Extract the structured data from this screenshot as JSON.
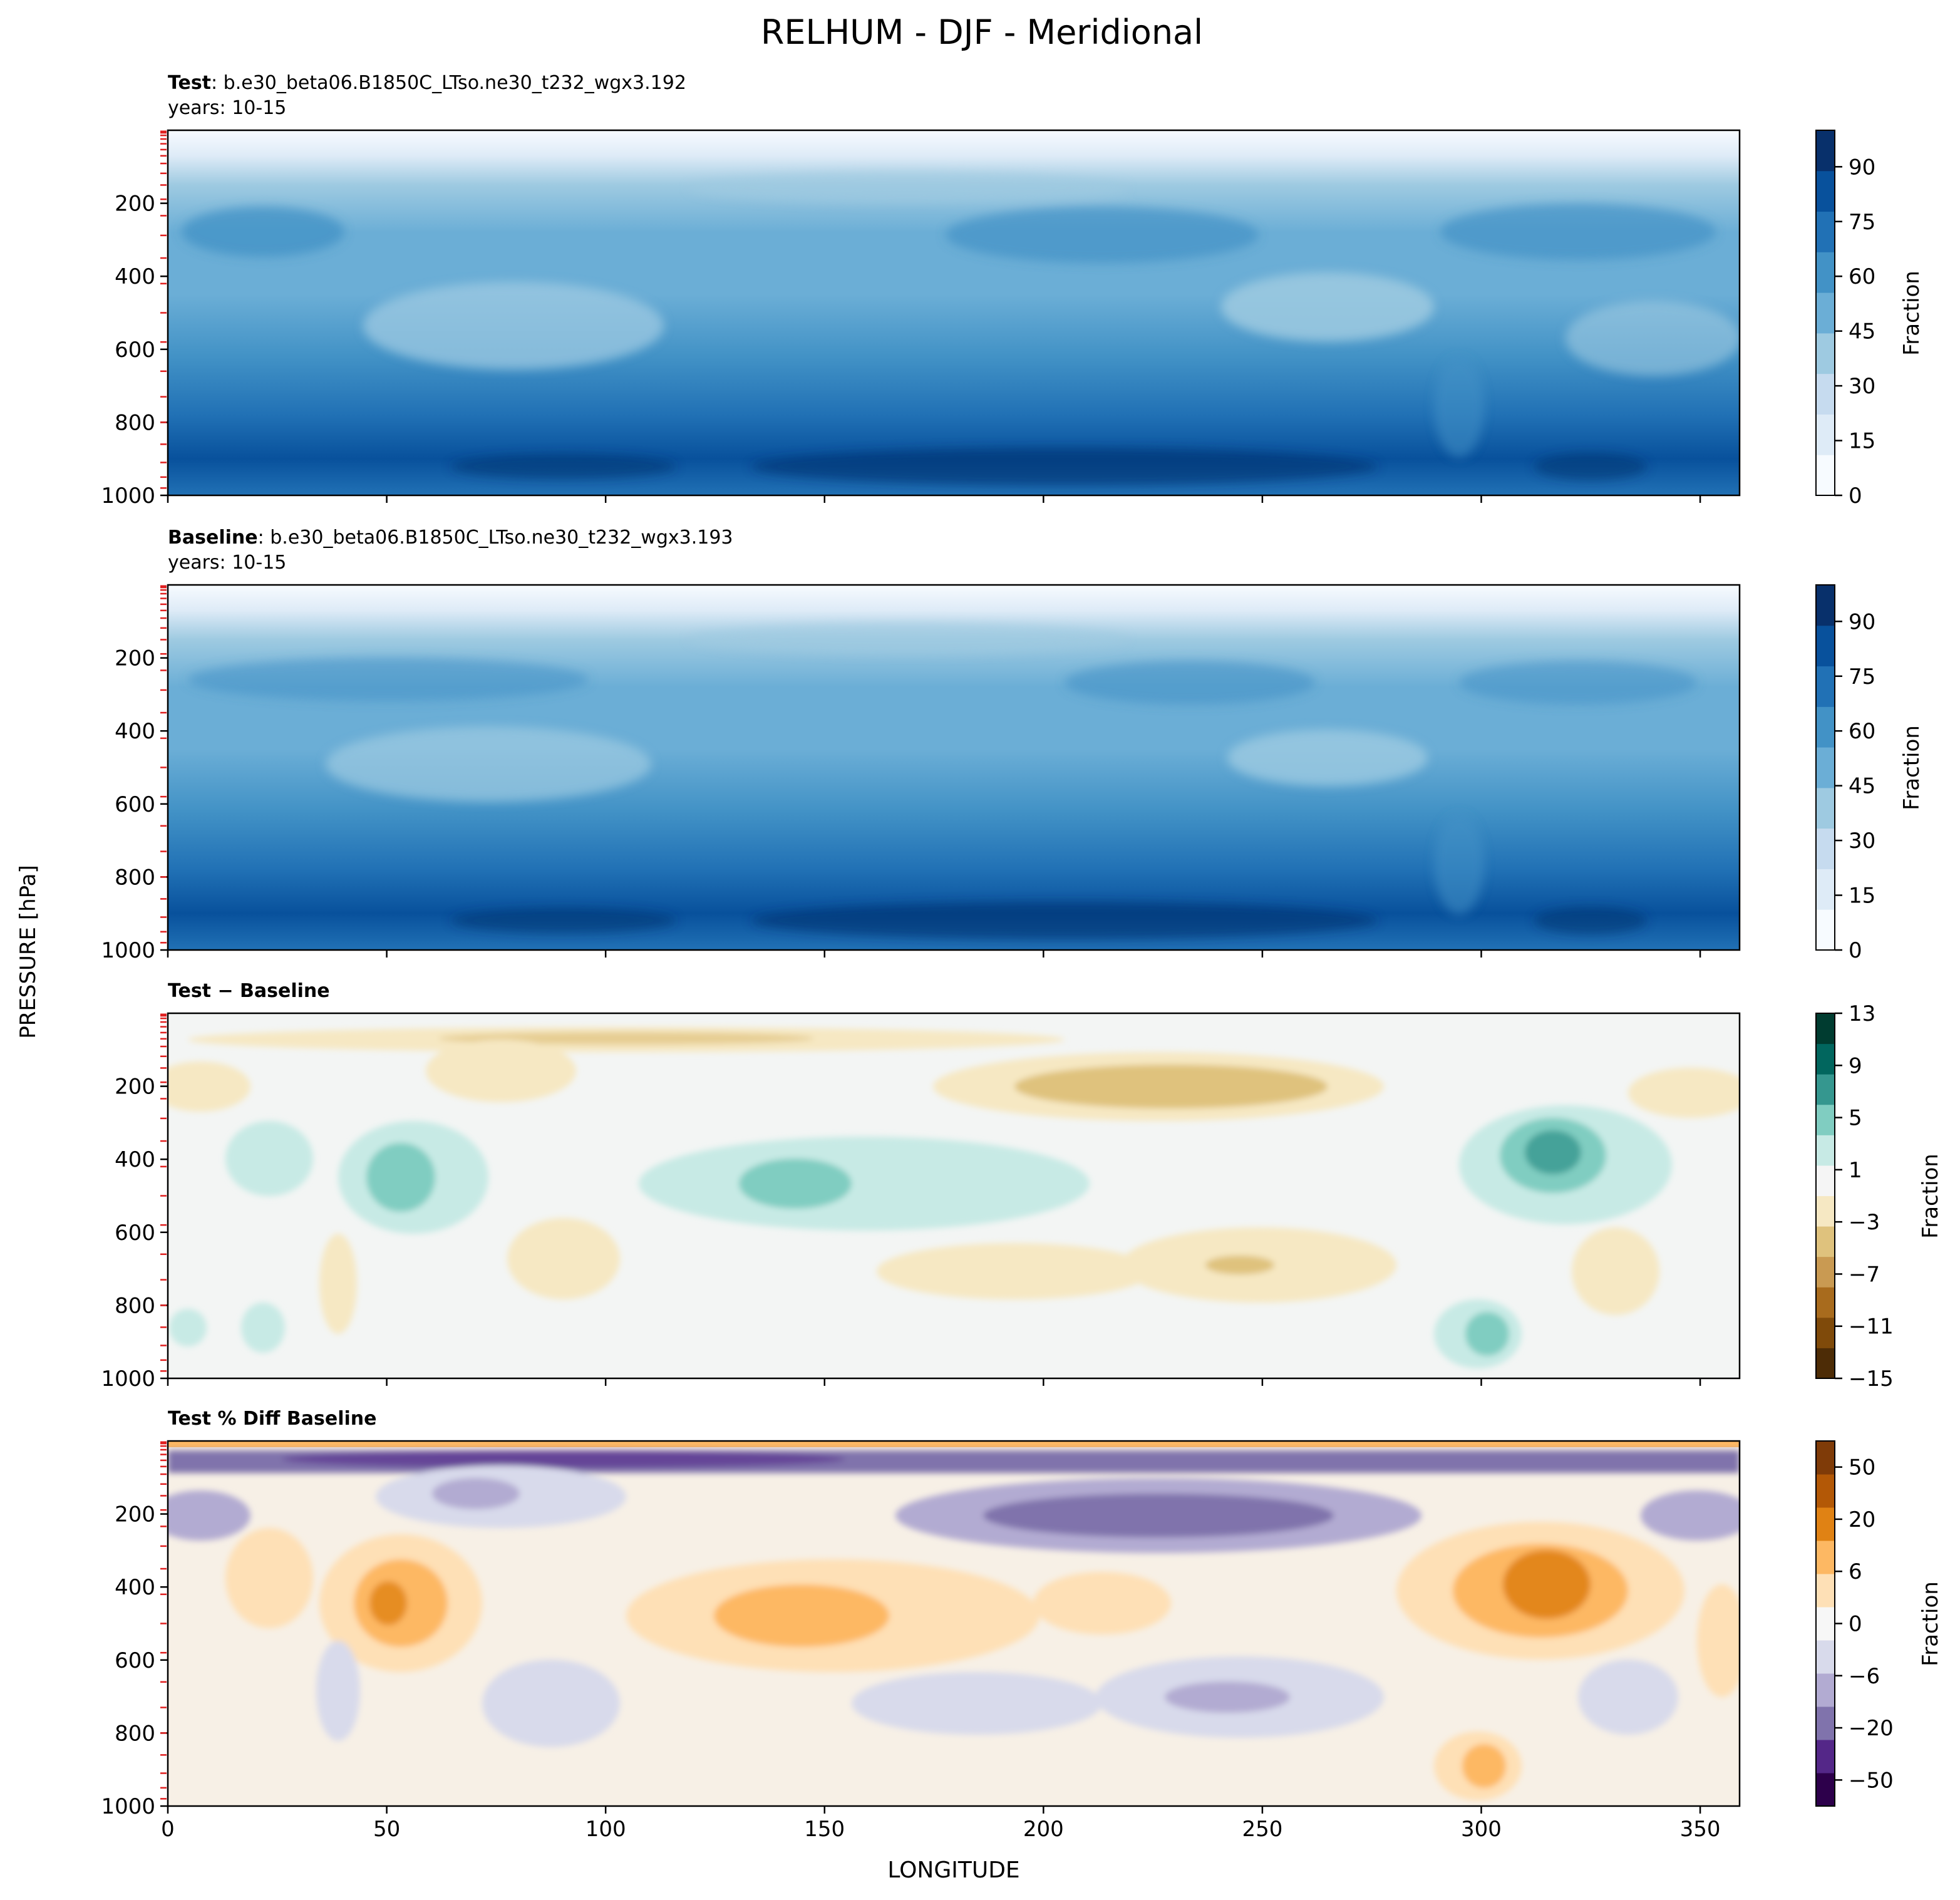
{
  "title": "RELHUM - DJF - Meridional",
  "ylabel": "PRESSURE [hPa]",
  "xlabel": "LONGITUDE",
  "chart_data": [
    {
      "type": "contourf",
      "panel": "test",
      "label_bold": "Test",
      "label_rest": ": b.e30_beta06.B1850C_LTso.ne30_t232_wgx3.192",
      "years": "years: 10-15",
      "colorbar_label": "Fraction",
      "colorbar_ticks": [
        "0",
        "15",
        "30",
        "45",
        "60",
        "75",
        "90"
      ],
      "colorbar_range": [
        0,
        100
      ],
      "colors": [
        "#f7fbff",
        "#deebf7",
        "#c6dbef",
        "#9ecae1",
        "#6baed6",
        "#4292c6",
        "#2171b5",
        "#08519c",
        "#08306b"
      ],
      "xlim": [
        0,
        359
      ],
      "ylim": [
        1000,
        3
      ],
      "xticks": [
        0,
        50,
        100,
        150,
        200,
        250,
        300,
        350
      ],
      "yticks": [
        "200",
        "400",
        "600",
        "800",
        "1000"
      ]
    },
    {
      "type": "contourf",
      "panel": "baseline",
      "label_bold": "Baseline",
      "label_rest": ": b.e30_beta06.B1850C_LTso.ne30_t232_wgx3.193",
      "years": "years: 10-15",
      "colorbar_label": "Fraction",
      "colorbar_ticks": [
        "0",
        "15",
        "30",
        "45",
        "60",
        "75",
        "90"
      ],
      "colorbar_range": [
        0,
        100
      ],
      "colors": [
        "#f7fbff",
        "#deebf7",
        "#c6dbef",
        "#9ecae1",
        "#6baed6",
        "#4292c6",
        "#2171b5",
        "#08519c",
        "#08306b"
      ],
      "xlim": [
        0,
        359
      ],
      "ylim": [
        1000,
        3
      ],
      "xticks": [
        0,
        50,
        100,
        150,
        200,
        250,
        300,
        350
      ],
      "yticks": [
        "200",
        "400",
        "600",
        "800",
        "1000"
      ]
    },
    {
      "type": "contourf",
      "panel": "diff",
      "label_bold": "Test − Baseline",
      "label_rest": "",
      "years": "",
      "colorbar_label": "Fraction",
      "colorbar_ticks": [
        "13",
        "9",
        "5",
        "1",
        "−3",
        "−7",
        "−11",
        "−15"
      ],
      "colorbar_range": [
        -15,
        13
      ],
      "colors": [
        "#4d2c06",
        "#7f4a0a",
        "#a86b1d",
        "#c99a52",
        "#dfc27d",
        "#f6e8c3",
        "#f5f5f5",
        "#c7eae5",
        "#80cdc1",
        "#35978f",
        "#01665e",
        "#003c30"
      ],
      "xlim": [
        0,
        359
      ],
      "ylim": [
        1000,
        3
      ],
      "xticks": [
        0,
        50,
        100,
        150,
        200,
        250,
        300,
        350
      ],
      "yticks": [
        "200",
        "400",
        "600",
        "800",
        "1000"
      ]
    },
    {
      "type": "contourf",
      "panel": "pctdiff",
      "label_bold": "Test % Diff Baseline",
      "label_rest": "",
      "years": "",
      "colorbar_label": "Fraction",
      "colorbar_ticks": [
        "50",
        "20",
        "6",
        "0",
        "−6",
        "−20",
        "−50"
      ],
      "colorbar_range": [
        -100,
        100
      ],
      "colors": [
        "#2d004b",
        "#542788",
        "#8073ac",
        "#b2abd2",
        "#d8daeb",
        "#f7f7f7",
        "#fee0b6",
        "#fdb863",
        "#e08214",
        "#b35806",
        "#7f3b08"
      ],
      "xlim": [
        0,
        359
      ],
      "ylim": [
        1000,
        3
      ],
      "xticks": [
        0,
        50,
        100,
        150,
        200,
        250,
        300,
        350
      ],
      "xtick_labels": [
        "0",
        "50",
        "100",
        "150",
        "200",
        "250",
        "300",
        "350"
      ],
      "yticks": [
        "200",
        "400",
        "600",
        "800",
        "1000"
      ]
    }
  ]
}
